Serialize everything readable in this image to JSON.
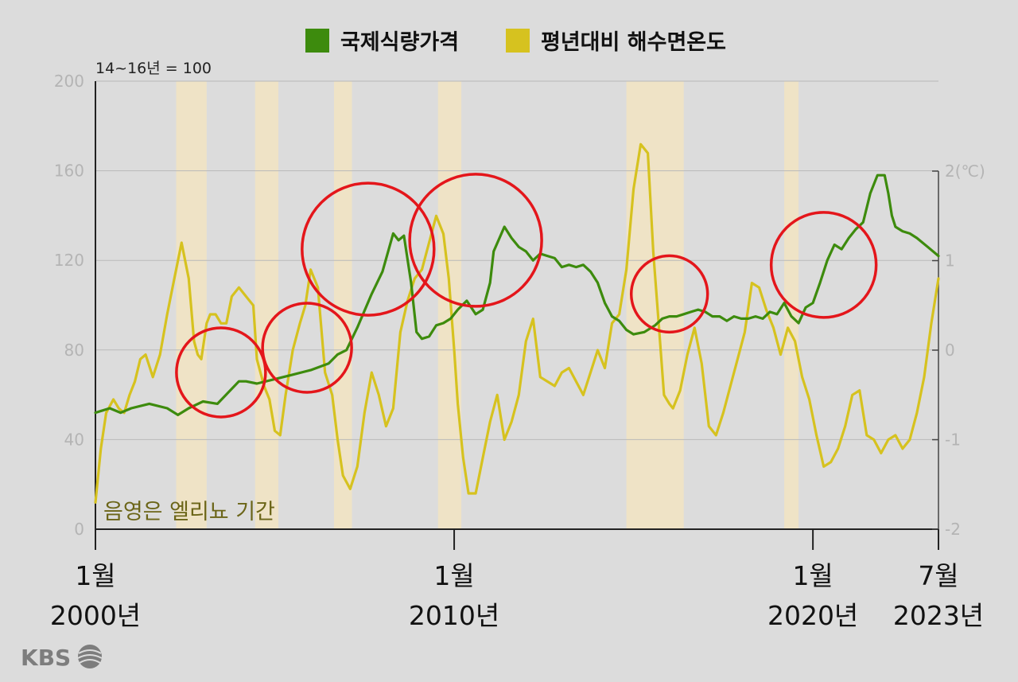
{
  "legend": {
    "food_price": "국제식량가격",
    "sea_temp": "평년대비 해수면온도"
  },
  "left_unit": "14~16년 = 100",
  "right_unit": "2(℃)",
  "shade_note": "음영은 엘리뇨 기간",
  "brand": "KBS",
  "x_labels": [
    {
      "month": "1월",
      "year": "2000년"
    },
    {
      "month": "1월",
      "year": "2010년"
    },
    {
      "month": "1월",
      "year": "2020년"
    },
    {
      "month": "7월",
      "year": "2023년"
    }
  ],
  "chart_data": {
    "type": "line",
    "x_range": [
      2000.0,
      2023.5
    ],
    "y_left": {
      "range": [
        0,
        200
      ],
      "ticks": [
        0,
        40,
        80,
        120,
        160,
        200
      ]
    },
    "y_right": {
      "range": [
        -2,
        2
      ],
      "ticks": [
        -2,
        -1,
        0,
        1
      ],
      "top_label": "2(℃)"
    },
    "grid": true,
    "legend_position": "top-center",
    "x_tick_positions": [
      2000.0,
      2010.0,
      2020.0,
      2023.5
    ],
    "colors": {
      "food_price": "#3d8b0d",
      "sea_temp": "#d6c21f",
      "shade": "#efe3c6",
      "highlight": "#e4161b"
    },
    "el_nino_periods": [
      [
        2002.25,
        2003.1
      ],
      [
        2004.45,
        2005.1
      ],
      [
        2006.65,
        2007.15
      ],
      [
        2009.55,
        2010.2
      ],
      [
        2014.8,
        2016.4
      ],
      [
        2019.2,
        2019.6
      ]
    ],
    "highlight_circles": [
      {
        "x": 2003.5,
        "y": 70
      },
      {
        "x": 2005.9,
        "y": 81
      },
      {
        "x": 2007.6,
        "y": 125
      },
      {
        "x": 2010.6,
        "y": 129
      },
      {
        "x": 2016.0,
        "y": 105
      },
      {
        "x": 2020.3,
        "y": 118
      }
    ],
    "series": [
      {
        "name": "국제식량가격",
        "axis": "left",
        "x": [
          2000.0,
          2000.4,
          2000.7,
          2001.0,
          2001.5,
          2002.0,
          2002.3,
          2002.6,
          2003.0,
          2003.4,
          2004.0,
          2004.2,
          2004.5,
          2005.0,
          2005.5,
          2006.0,
          2006.5,
          2006.75,
          2007.0,
          2007.3,
          2007.7,
          2008.0,
          2008.3,
          2008.45,
          2008.6,
          2008.8,
          2008.95,
          2009.1,
          2009.3,
          2009.5,
          2009.7,
          2009.9,
          2010.1,
          2010.35,
          2010.6,
          2010.8,
          2011.0,
          2011.1,
          2011.4,
          2011.6,
          2011.8,
          2012.0,
          2012.2,
          2012.4,
          2012.6,
          2012.8,
          2013.0,
          2013.2,
          2013.4,
          2013.6,
          2013.8,
          2014.0,
          2014.2,
          2014.4,
          2014.6,
          2014.8,
          2015.0,
          2015.3,
          2015.6,
          2015.8,
          2016.0,
          2016.2,
          2016.4,
          2016.6,
          2016.8,
          2017.0,
          2017.2,
          2017.4,
          2017.6,
          2017.8,
          2018.0,
          2018.2,
          2018.4,
          2018.6,
          2018.8,
          2019.0,
          2019.2,
          2019.4,
          2019.6,
          2019.8,
          2020.0,
          2020.2,
          2020.4,
          2020.6,
          2020.8,
          2021.0,
          2021.2,
          2021.4,
          2021.6,
          2021.8,
          2022.0,
          2022.1,
          2022.2,
          2022.3,
          2022.5,
          2022.7,
          2022.9,
          2023.2,
          2023.5
        ],
        "values": [
          52,
          54,
          52,
          54,
          56,
          54,
          51,
          54,
          57,
          56,
          66,
          66,
          65,
          67,
          69,
          71,
          74,
          78,
          80,
          90,
          105,
          115,
          132,
          129,
          131,
          110,
          88,
          85,
          86,
          91,
          92,
          94,
          98,
          102,
          96,
          98,
          110,
          124,
          135,
          130,
          126,
          124,
          120,
          123,
          122,
          121,
          117,
          118,
          117,
          118,
          115,
          110,
          101,
          95,
          93,
          89,
          87,
          88,
          91,
          94,
          95,
          95,
          96,
          97,
          98,
          97,
          95,
          95,
          93,
          95,
          94,
          94,
          95,
          94,
          97,
          96,
          101,
          95,
          92,
          99,
          101,
          110,
          120,
          127,
          125,
          130,
          134,
          137,
          150,
          158,
          158,
          150,
          140,
          135,
          133,
          132,
          130,
          126,
          122
        ]
      },
      {
        "name": "평년대비 해수면온도",
        "axis": "right",
        "x": [
          2000.0,
          2000.15,
          2000.3,
          2000.5,
          2000.65,
          2000.8,
          2000.95,
          2001.1,
          2001.25,
          2001.4,
          2001.6,
          2001.8,
          2002.0,
          2002.2,
          2002.4,
          2002.6,
          2002.75,
          2002.85,
          2002.95,
          2003.1,
          2003.2,
          2003.35,
          2003.5,
          2003.65,
          2003.8,
          2004.0,
          2004.2,
          2004.4,
          2004.5,
          2004.7,
          2004.85,
          2005.0,
          2005.15,
          2005.3,
          2005.5,
          2005.7,
          2005.85,
          2006.0,
          2006.2,
          2006.4,
          2006.6,
          2006.75,
          2006.9,
          2007.1,
          2007.3,
          2007.5,
          2007.7,
          2007.9,
          2008.1,
          2008.3,
          2008.5,
          2008.7,
          2008.9,
          2009.1,
          2009.3,
          2009.5,
          2009.7,
          2009.85,
          2010.0,
          2010.1,
          2010.25,
          2010.4,
          2010.6,
          2010.8,
          2011.0,
          2011.2,
          2011.4,
          2011.6,
          2011.8,
          2012.0,
          2012.2,
          2012.4,
          2012.6,
          2012.8,
          2013.0,
          2013.2,
          2013.4,
          2013.6,
          2013.8,
          2014.0,
          2014.2,
          2014.4,
          2014.6,
          2014.8,
          2015.0,
          2015.2,
          2015.4,
          2015.55,
          2015.7,
          2015.85,
          2016.0,
          2016.1,
          2016.3,
          2016.5,
          2016.7,
          2016.9,
          2017.1,
          2017.3,
          2017.5,
          2017.7,
          2017.9,
          2018.1,
          2018.3,
          2018.5,
          2018.7,
          2018.9,
          2019.1,
          2019.3,
          2019.5,
          2019.7,
          2019.9,
          2020.1,
          2020.3,
          2020.5,
          2020.7,
          2020.9,
          2021.1,
          2021.3,
          2021.5,
          2021.7,
          2021.9,
          2022.1,
          2022.3,
          2022.5,
          2022.7,
          2022.9,
          2023.1,
          2023.3,
          2023.5
        ],
        "values": [
          -1.7,
          -1.1,
          -0.7,
          -0.55,
          -0.65,
          -0.7,
          -0.5,
          -0.35,
          -0.1,
          -0.05,
          -0.3,
          -0.05,
          0.4,
          0.8,
          1.2,
          0.8,
          0.1,
          -0.05,
          -0.1,
          0.3,
          0.4,
          0.4,
          0.3,
          0.3,
          0.6,
          0.7,
          0.6,
          0.5,
          -0.1,
          -0.4,
          -0.55,
          -0.9,
          -0.95,
          -0.5,
          0.0,
          0.3,
          0.5,
          0.9,
          0.7,
          -0.25,
          -0.5,
          -1.0,
          -1.4,
          -1.55,
          -1.3,
          -0.7,
          -0.25,
          -0.5,
          -0.85,
          -0.65,
          0.2,
          0.55,
          0.8,
          0.9,
          1.2,
          1.5,
          1.3,
          0.8,
          0.0,
          -0.6,
          -1.2,
          -1.6,
          -1.6,
          -1.2,
          -0.8,
          -0.5,
          -1.0,
          -0.8,
          -0.5,
          0.1,
          0.35,
          -0.3,
          -0.35,
          -0.4,
          -0.25,
          -0.2,
          -0.35,
          -0.5,
          -0.25,
          0.0,
          -0.2,
          0.3,
          0.4,
          0.9,
          1.8,
          2.3,
          2.2,
          1.1,
          0.3,
          -0.5,
          -0.6,
          -0.65,
          -0.45,
          -0.05,
          0.25,
          -0.15,
          -0.85,
          -0.95,
          -0.7,
          -0.4,
          -0.1,
          0.2,
          0.75,
          0.7,
          0.45,
          0.25,
          -0.05,
          0.25,
          0.1,
          -0.3,
          -0.55,
          -0.95,
          -1.3,
          -1.25,
          -1.1,
          -0.85,
          -0.5,
          -0.45,
          -0.95,
          -1.0,
          -1.15,
          -1.0,
          -0.95,
          -1.1,
          -1.0,
          -0.7,
          -0.3,
          0.3,
          0.8
        ]
      }
    ]
  }
}
